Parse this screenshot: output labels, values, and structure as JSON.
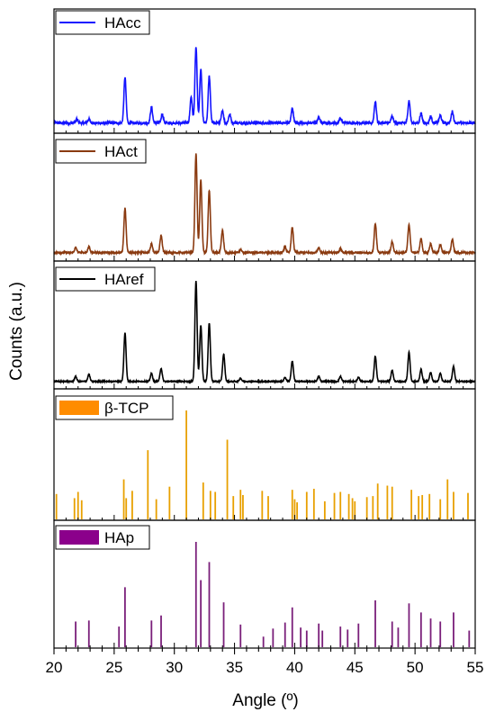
{
  "chart_data": {
    "type": "line",
    "xlabel": "Angle (º)",
    "ylabel": "Counts (a.u.)",
    "xlim": [
      20,
      55
    ],
    "xticks": [
      20,
      25,
      30,
      35,
      40,
      45,
      50,
      55
    ],
    "grid": false,
    "panels": [
      {
        "name": "HAcc",
        "type": "line",
        "color": "#1414ff",
        "legend_style": "line",
        "legend_position": "top-left",
        "baseline": 0.05,
        "noise": 0.012,
        "peaks": [
          [
            21.9,
            0.04
          ],
          [
            22.9,
            0.04
          ],
          [
            25.9,
            0.47
          ],
          [
            28.1,
            0.16
          ],
          [
            29.0,
            0.09
          ],
          [
            31.4,
            0.27
          ],
          [
            31.8,
            0.78
          ],
          [
            32.2,
            0.55
          ],
          [
            32.9,
            0.48
          ],
          [
            34.0,
            0.13
          ],
          [
            34.6,
            0.09
          ],
          [
            39.8,
            0.15
          ],
          [
            42.0,
            0.06
          ],
          [
            43.8,
            0.05
          ],
          [
            46.7,
            0.22
          ],
          [
            48.1,
            0.07
          ],
          [
            49.5,
            0.23
          ],
          [
            50.5,
            0.1
          ],
          [
            51.3,
            0.07
          ],
          [
            52.1,
            0.08
          ],
          [
            53.1,
            0.12
          ]
        ]
      },
      {
        "name": "HAct",
        "type": "line",
        "color": "#8a3a10",
        "legend_style": "line",
        "legend_position": "top-left",
        "baseline": 0.03,
        "noise": 0.008,
        "peaks": [
          [
            21.8,
            0.05
          ],
          [
            22.9,
            0.06
          ],
          [
            25.9,
            0.44
          ],
          [
            28.1,
            0.09
          ],
          [
            28.9,
            0.17
          ],
          [
            31.8,
            0.98
          ],
          [
            32.2,
            0.72
          ],
          [
            32.9,
            0.62
          ],
          [
            34.0,
            0.22
          ],
          [
            35.5,
            0.03
          ],
          [
            39.2,
            0.06
          ],
          [
            39.8,
            0.25
          ],
          [
            42.0,
            0.05
          ],
          [
            43.8,
            0.04
          ],
          [
            46.7,
            0.29
          ],
          [
            48.1,
            0.11
          ],
          [
            49.5,
            0.28
          ],
          [
            50.5,
            0.14
          ],
          [
            51.3,
            0.09
          ],
          [
            52.1,
            0.08
          ],
          [
            53.1,
            0.13
          ]
        ]
      },
      {
        "name": "HAref",
        "type": "line",
        "color": "#000000",
        "legend_style": "line",
        "legend_position": "top-left",
        "baseline": 0.02,
        "noise": 0.005,
        "peaks": [
          [
            21.8,
            0.05
          ],
          [
            22.9,
            0.07
          ],
          [
            25.9,
            0.48
          ],
          [
            28.1,
            0.08
          ],
          [
            28.9,
            0.13
          ],
          [
            31.8,
            1.0
          ],
          [
            32.2,
            0.56
          ],
          [
            32.9,
            0.58
          ],
          [
            34.1,
            0.27
          ],
          [
            35.5,
            0.03
          ],
          [
            39.2,
            0.04
          ],
          [
            39.8,
            0.2
          ],
          [
            42.0,
            0.05
          ],
          [
            43.8,
            0.05
          ],
          [
            45.3,
            0.04
          ],
          [
            46.7,
            0.25
          ],
          [
            48.1,
            0.11
          ],
          [
            49.5,
            0.29
          ],
          [
            50.5,
            0.12
          ],
          [
            51.3,
            0.09
          ],
          [
            52.1,
            0.08
          ],
          [
            53.2,
            0.15
          ]
        ]
      },
      {
        "name": "β-TCP",
        "type": "bar",
        "color": "#e8a000",
        "legend_style": "box",
        "legend_color": "#ff8c00",
        "legend_position": "top-left",
        "peaks": [
          [
            20.2,
            0.2
          ],
          [
            21.7,
            0.16
          ],
          [
            22.0,
            0.22
          ],
          [
            22.3,
            0.14
          ],
          [
            25.8,
            0.34
          ],
          [
            26.0,
            0.16
          ],
          [
            26.5,
            0.23
          ],
          [
            27.8,
            0.62
          ],
          [
            28.5,
            0.15
          ],
          [
            29.6,
            0.27
          ],
          [
            31.0,
            1.0
          ],
          [
            32.4,
            0.31
          ],
          [
            33.0,
            0.23
          ],
          [
            33.4,
            0.22
          ],
          [
            34.4,
            0.72
          ],
          [
            34.9,
            0.18
          ],
          [
            35.5,
            0.24
          ],
          [
            35.7,
            0.19
          ],
          [
            37.3,
            0.23
          ],
          [
            37.8,
            0.18
          ],
          [
            39.8,
            0.24
          ],
          [
            40.0,
            0.15
          ],
          [
            40.2,
            0.12
          ],
          [
            41.0,
            0.22
          ],
          [
            41.6,
            0.25
          ],
          [
            42.5,
            0.13
          ],
          [
            43.3,
            0.21
          ],
          [
            43.8,
            0.22
          ],
          [
            44.5,
            0.2
          ],
          [
            44.8,
            0.16
          ],
          [
            45.0,
            0.13
          ],
          [
            46.0,
            0.17
          ],
          [
            46.5,
            0.18
          ],
          [
            46.9,
            0.3
          ],
          [
            47.7,
            0.28
          ],
          [
            48.1,
            0.27
          ],
          [
            49.7,
            0.24
          ],
          [
            50.3,
            0.18
          ],
          [
            50.6,
            0.19
          ],
          [
            51.2,
            0.2
          ],
          [
            52.1,
            0.15
          ],
          [
            52.7,
            0.34
          ],
          [
            53.2,
            0.22
          ],
          [
            54.4,
            0.21
          ]
        ]
      },
      {
        "name": "HAp",
        "type": "bar",
        "color": "#7a1f7a",
        "legend_style": "box",
        "legend_color": "#8b008b",
        "legend_position": "top-left",
        "peaks": [
          [
            21.8,
            0.21
          ],
          [
            22.9,
            0.22
          ],
          [
            25.4,
            0.16
          ],
          [
            25.9,
            0.55
          ],
          [
            28.1,
            0.22
          ],
          [
            28.9,
            0.27
          ],
          [
            31.8,
            1.0
          ],
          [
            32.2,
            0.62
          ],
          [
            32.9,
            0.8
          ],
          [
            34.1,
            0.4
          ],
          [
            35.5,
            0.18
          ],
          [
            37.4,
            0.06
          ],
          [
            38.2,
            0.14
          ],
          [
            39.2,
            0.2
          ],
          [
            39.8,
            0.35
          ],
          [
            40.5,
            0.15
          ],
          [
            41.0,
            0.12
          ],
          [
            42.0,
            0.19
          ],
          [
            42.3,
            0.12
          ],
          [
            43.8,
            0.16
          ],
          [
            44.4,
            0.13
          ],
          [
            45.3,
            0.19
          ],
          [
            46.7,
            0.42
          ],
          [
            48.1,
            0.21
          ],
          [
            48.6,
            0.15
          ],
          [
            49.5,
            0.39
          ],
          [
            50.5,
            0.3
          ],
          [
            51.3,
            0.24
          ],
          [
            52.1,
            0.21
          ],
          [
            53.2,
            0.3
          ],
          [
            54.5,
            0.12
          ]
        ]
      }
    ]
  }
}
